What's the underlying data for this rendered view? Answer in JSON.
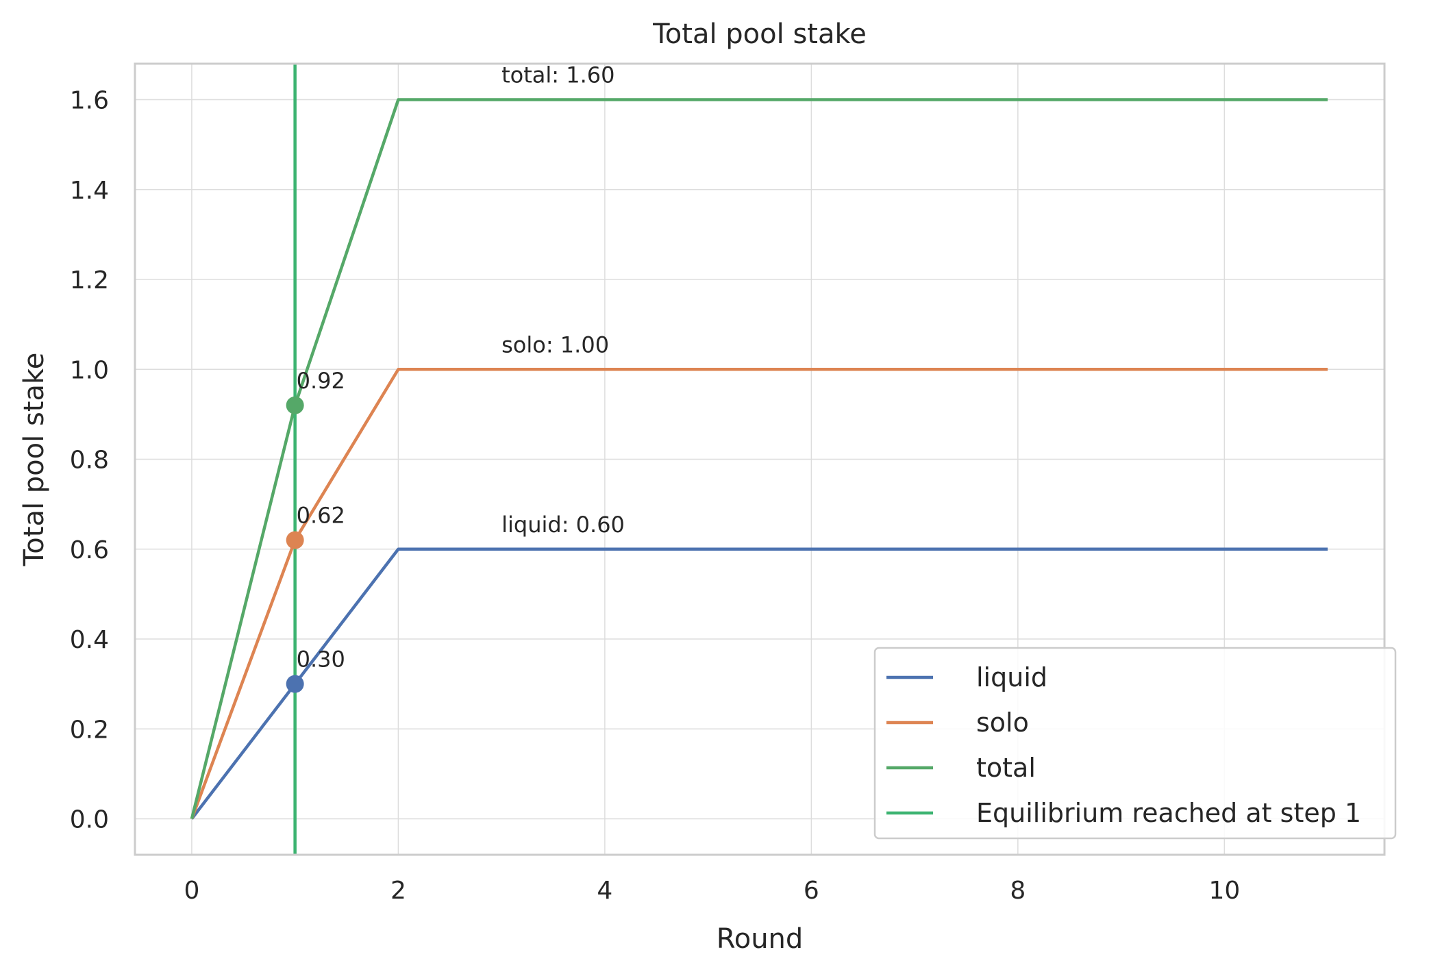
{
  "chart_data": {
    "type": "line",
    "title": "Total pool stake",
    "xlabel": "Round",
    "ylabel": "Total pool stake",
    "xlim": [
      -0.55,
      11.55
    ],
    "ylim": [
      -0.08,
      1.68
    ],
    "xticks": [
      0,
      2,
      4,
      6,
      8,
      10
    ],
    "yticks": [
      0.0,
      0.2,
      0.4,
      0.6,
      0.8,
      1.0,
      1.2,
      1.4,
      1.6
    ],
    "ytick_labels": [
      "0.0",
      "0.2",
      "0.4",
      "0.6",
      "0.8",
      "1.0",
      "1.2",
      "1.4",
      "1.6"
    ],
    "grid": true,
    "legend_position": "lower-right",
    "x": [
      0,
      1,
      2,
      3,
      4,
      5,
      6,
      7,
      8,
      9,
      10,
      11
    ],
    "series": [
      {
        "name": "liquid",
        "color": "#4c72b0",
        "values": [
          0,
          0.3,
          0.6,
          0.6,
          0.6,
          0.6,
          0.6,
          0.6,
          0.6,
          0.6,
          0.6,
          0.6
        ]
      },
      {
        "name": "solo",
        "color": "#dd8452",
        "values": [
          0,
          0.62,
          1.0,
          1.0,
          1.0,
          1.0,
          1.0,
          1.0,
          1.0,
          1.0,
          1.0,
          1.0
        ]
      },
      {
        "name": "total",
        "color": "#55a868",
        "values": [
          0,
          0.92,
          1.6,
          1.6,
          1.6,
          1.6,
          1.6,
          1.6,
          1.6,
          1.6,
          1.6,
          1.6
        ]
      }
    ],
    "vline": {
      "x": 1,
      "name": "Equilibrium reached at step 1",
      "color": "#3cb371"
    },
    "markers": [
      {
        "series": "liquid",
        "x": 1,
        "y": 0.3,
        "label": "0.30",
        "color": "#4c72b0"
      },
      {
        "series": "solo",
        "x": 1,
        "y": 0.62,
        "label": "0.62",
        "color": "#dd8452"
      },
      {
        "series": "total",
        "x": 1,
        "y": 0.92,
        "label": "0.92",
        "color": "#55a868"
      }
    ],
    "end_annotations": [
      {
        "x": 3,
        "y": 0.6,
        "label": "liquid: 0.60"
      },
      {
        "x": 3,
        "y": 1.0,
        "label": "solo: 1.00"
      },
      {
        "x": 3,
        "y": 1.6,
        "label": "total: 1.60"
      }
    ]
  }
}
